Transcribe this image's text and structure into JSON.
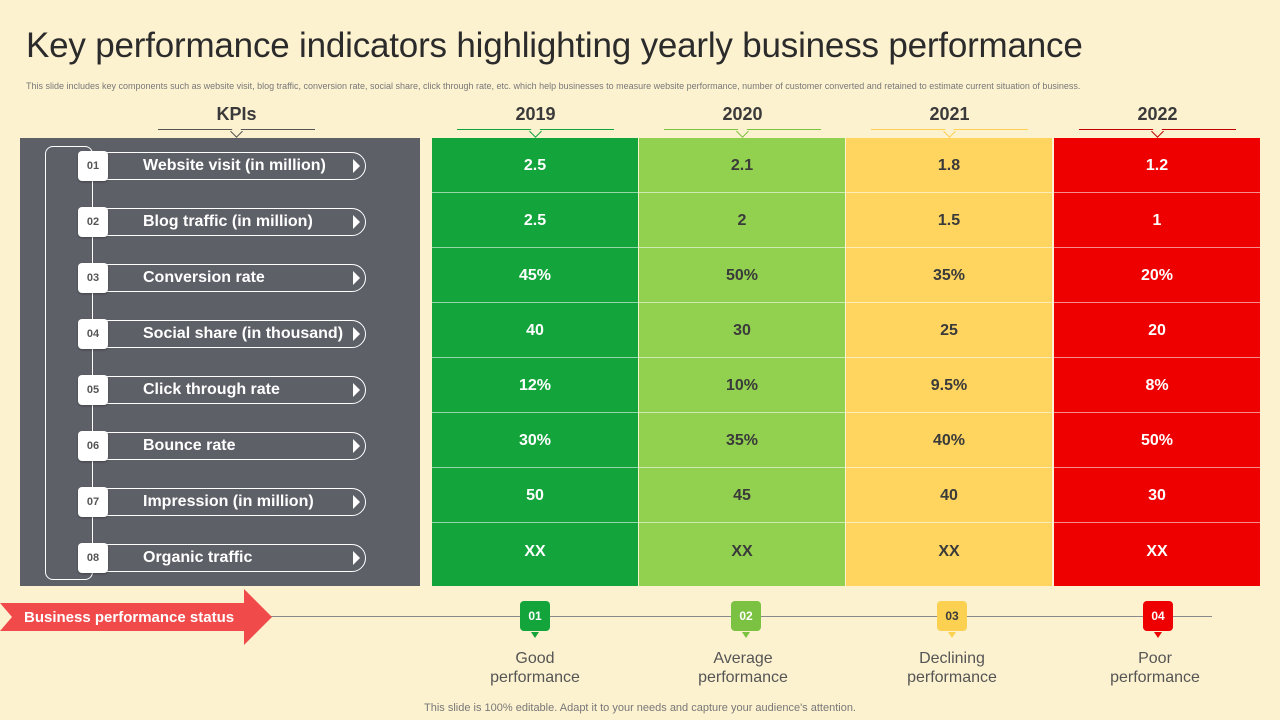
{
  "title": "Key performance indicators highlighting yearly business performance",
  "subtitle": "This slide includes key components such as website visit, blog traffic, conversion rate, social share, click through rate, etc. which help businesses to measure website performance, number of customer converted and retained to estimate current situation of business.",
  "kpi_header": "KPIs",
  "kpis": [
    {
      "num": "01",
      "label": "Website visit (in million)"
    },
    {
      "num": "02",
      "label": "Blog traffic (in million)"
    },
    {
      "num": "03",
      "label": "Conversion rate"
    },
    {
      "num": "04",
      "label": "Social share (in thousand)"
    },
    {
      "num": "05",
      "label": "Click through rate"
    },
    {
      "num": "06",
      "label": "Bounce rate"
    },
    {
      "num": "07",
      "label": "Impression (in million)"
    },
    {
      "num": "08",
      "label": "Organic traffic"
    }
  ],
  "years": [
    {
      "year": "2019",
      "color": "#13a43c",
      "text_color": "#ffffff",
      "values": [
        "2.5",
        "2.5",
        "45%",
        "40",
        "12%",
        "30%",
        "50",
        "XX"
      ]
    },
    {
      "year": "2020",
      "color": "#92d050",
      "text_color": "#3a3a3a",
      "values": [
        "2.1",
        "2",
        "50%",
        "30",
        "10%",
        "35%",
        "45",
        "XX"
      ]
    },
    {
      "year": "2021",
      "color": "#ffd560",
      "text_color": "#3a3a3a",
      "values": [
        "1.8",
        "1.5",
        "35%",
        "25",
        "9.5%",
        "40%",
        "40",
        "XX"
      ]
    },
    {
      "year": "2022",
      "color": "#ee0000",
      "text_color": "#ffffff",
      "values": [
        "1.2",
        "1",
        "20%",
        "20",
        "8%",
        "50%",
        "30",
        "XX"
      ]
    }
  ],
  "status_label": "Business performance status",
  "status_color": "#f04a4a",
  "legend": [
    {
      "num": "01",
      "label1": "Good",
      "label2": "performance",
      "color": "#13a43c"
    },
    {
      "num": "02",
      "label1": "Average",
      "label2": "performance",
      "color": "#7cc242"
    },
    {
      "num": "03",
      "label1": "Declining",
      "label2": "performance",
      "color": "#fcd050"
    },
    {
      "num": "04",
      "label1": "Poor",
      "label2": "performance",
      "color": "#ee0000"
    }
  ],
  "footer": "This slide is 100% editable. Adapt it to your needs and capture your audience's attention."
}
